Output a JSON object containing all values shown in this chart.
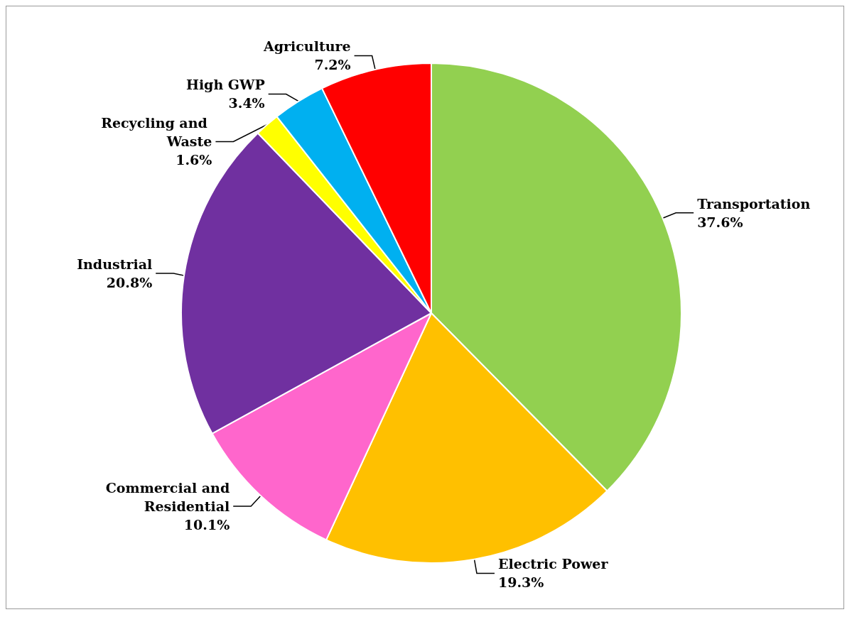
{
  "chart_data": {
    "type": "pie",
    "categories": [
      "Transportation",
      "Electric Power",
      "Commercial and Residential",
      "Industrial",
      "Recycling and Waste",
      "High GWP",
      "Agriculture"
    ],
    "values": [
      37.6,
      19.3,
      10.1,
      20.8,
      1.6,
      3.4,
      7.2
    ],
    "colors": [
      "#92d050",
      "#ffc000",
      "#ff66cc",
      "#7030a0",
      "#ffff00",
      "#00b0f0",
      "#ff0000"
    ],
    "value_labels": [
      "37.6%",
      "19.3%",
      "10.1%",
      "20.8%",
      "1.6%",
      "3.4%",
      "7.2%"
    ],
    "legend": false
  }
}
